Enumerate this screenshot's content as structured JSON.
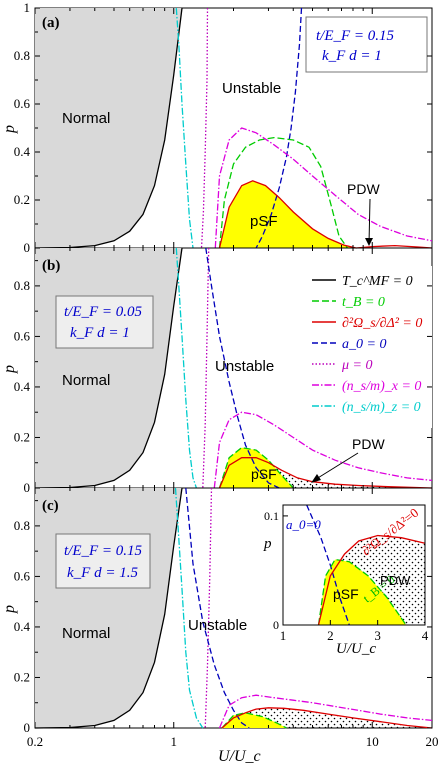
{
  "figure": {
    "x_axis_label": "U/U_c",
    "y_axis_label": "p",
    "x_ticks": [
      "0.2",
      "1",
      "10",
      "20"
    ],
    "y_ticks_top": [
      "0",
      "0.2",
      "0.4",
      "0.6",
      "0.8",
      "1"
    ],
    "y_ticks_mid": [
      "0",
      "0.2",
      "0.4",
      "0.6",
      "0.8"
    ],
    "y_ticks_bot": [
      "0",
      "0.2",
      "0.4",
      "0.6",
      "0.8"
    ]
  },
  "panels": [
    {
      "tag": "(a)",
      "param_line1": "t/E_F = 0.15",
      "param_line2": "k_F d = 1",
      "normal": "Normal",
      "unstable": "Unstable",
      "psf": "pSF",
      "pdw": "PDW"
    },
    {
      "tag": "(b)",
      "param_line1": "t/E_F = 0.05",
      "param_line2": "k_F d = 1",
      "normal": "Normal",
      "unstable": "Unstable",
      "psf": "pSF",
      "pdw": "PDW"
    },
    {
      "tag": "(c)",
      "param_line1": "t/E_F = 0.15",
      "param_line2": "k_F d = 1.5",
      "normal": "Normal",
      "unstable": "Unstable"
    }
  ],
  "legend": [
    {
      "label": "T_c^MF = 0",
      "color": "#000000",
      "dash": ""
    },
    {
      "label": "t_B = 0",
      "color": "#00cc00",
      "dash": "7,3"
    },
    {
      "label": "∂²Ω_s/∂Δ² = 0",
      "color": "#dd0000",
      "dash": ""
    },
    {
      "label": "a_0 = 0",
      "color": "#0000bb",
      "dash": "6,3"
    },
    {
      "label": "μ = 0",
      "color": "#bb00bb",
      "dash": "1.5,2"
    },
    {
      "label": "(n_s/m)_x = 0",
      "color": "#dd00dd",
      "dash": "7,2,1.5,2"
    },
    {
      "label": "(n_s/m)_z = 0",
      "color": "#00cccc",
      "dash": "7,2,1.5,2"
    }
  ],
  "inset": {
    "y_axis_label": "p",
    "x_axis_label": "U/U_c",
    "x_ticks": [
      "1",
      "2",
      "3",
      "4"
    ],
    "y_ticks": [
      "0",
      "0.1"
    ],
    "a0_label": "a_0=0",
    "curvature_label": "∂²Ω_s/∂Δ²=0",
    "tb_label": "t_B = 0",
    "pdw": "PDW",
    "psf": "pSF"
  },
  "chart_data": [
    {
      "type": "line",
      "title": "",
      "panel": "(a)",
      "xlabel": "U/U_c",
      "ylabel": "p",
      "x_scale": "log",
      "xlim": [
        0.2,
        20
      ],
      "ylim": [
        0,
        1
      ],
      "series": [
        {
          "name": "T_c^MF = 0",
          "x": [
            0.2,
            0.3,
            0.4,
            0.5,
            0.6,
            0.7,
            0.8,
            0.9,
            1.0,
            1.1
          ],
          "y": [
            0.0,
            0.002,
            0.01,
            0.03,
            0.07,
            0.14,
            0.26,
            0.45,
            0.72,
            1.0
          ]
        },
        {
          "name": "(n_s/m)_z = 0",
          "x": [
            1.03,
            1.06,
            1.1,
            1.15,
            1.2,
            1.25
          ],
          "y": [
            1.0,
            0.85,
            0.6,
            0.35,
            0.12,
            0.0
          ]
        },
        {
          "name": "μ = 0",
          "x": [
            1.48,
            1.47,
            1.44,
            1.41,
            1.38
          ],
          "y": [
            1.0,
            0.7,
            0.4,
            0.15,
            0.0
          ]
        },
        {
          "name": "a_0 = 0",
          "x": [
            4.4,
            4.3,
            4.1,
            3.9,
            3.7,
            3.4,
            3.1,
            2.8,
            2.6
          ],
          "y": [
            1.0,
            0.85,
            0.65,
            0.5,
            0.38,
            0.25,
            0.14,
            0.05,
            0.0
          ]
        },
        {
          "name": "t_B = 0",
          "x": [
            1.7,
            1.8,
            2.0,
            2.3,
            2.7,
            3.2,
            4.0,
            4.8,
            5.5,
            6.2,
            6.8,
            7.5
          ],
          "y": [
            0.0,
            0.2,
            0.35,
            0.42,
            0.45,
            0.46,
            0.45,
            0.42,
            0.34,
            0.18,
            0.05,
            0.0
          ]
        },
        {
          "name": "(n_s/m)_x = 0",
          "x": [
            1.62,
            1.7,
            1.9,
            2.2,
            2.6,
            3.2,
            4.0,
            5.0,
            6.5,
            8.5,
            11,
            15,
            20
          ],
          "y": [
            0.0,
            0.3,
            0.45,
            0.5,
            0.48,
            0.43,
            0.37,
            0.3,
            0.22,
            0.14,
            0.09,
            0.05,
            0.03
          ]
        },
        {
          "name": "∂²Ω_s/∂Δ² = 0",
          "x": [
            1.7,
            1.9,
            2.2,
            2.5,
            2.9,
            3.4,
            4.0,
            5.0,
            6.0,
            7.2,
            8.3,
            10,
            13,
            17,
            20
          ],
          "y": [
            0.0,
            0.17,
            0.26,
            0.28,
            0.26,
            0.21,
            0.15,
            0.08,
            0.04,
            0.012,
            0.0,
            0.006,
            0.01,
            0.004,
            0.0
          ]
        }
      ]
    },
    {
      "type": "line",
      "title": "",
      "panel": "(b)",
      "xlabel": "U/U_c",
      "ylabel": "p",
      "x_scale": "log",
      "xlim": [
        0.2,
        20
      ],
      "ylim": [
        0,
        0.95
      ],
      "series": [
        {
          "name": "T_c^MF = 0",
          "x": [
            0.2,
            0.3,
            0.4,
            0.5,
            0.6,
            0.7,
            0.8,
            0.9,
            1.0,
            1.1
          ],
          "y": [
            0.0,
            0.002,
            0.01,
            0.03,
            0.07,
            0.14,
            0.26,
            0.45,
            0.72,
            0.95
          ]
        },
        {
          "name": "(n_s/m)_z = 0",
          "x": [
            1.03,
            1.06,
            1.1,
            1.15,
            1.2,
            1.25,
            1.3
          ],
          "y": [
            0.95,
            0.8,
            0.6,
            0.35,
            0.15,
            0.04,
            0.0
          ]
        },
        {
          "name": "μ = 0",
          "x": [
            1.5,
            1.47,
            1.44,
            1.4
          ],
          "y": [
            0.95,
            0.6,
            0.25,
            0.0
          ]
        },
        {
          "name": "a_0 = 0",
          "x": [
            1.45,
            1.55,
            1.7,
            1.9,
            2.1,
            2.3,
            2.6,
            3.0,
            3.4
          ],
          "y": [
            0.95,
            0.8,
            0.6,
            0.42,
            0.28,
            0.17,
            0.08,
            0.02,
            0.0
          ]
        },
        {
          "name": "t_B = 0",
          "x": [
            1.7,
            1.9,
            2.2,
            2.6,
            3.0,
            3.5,
            4.0
          ],
          "y": [
            0.0,
            0.12,
            0.16,
            0.15,
            0.11,
            0.05,
            0.0
          ]
        },
        {
          "name": "(n_s/m)_x = 0",
          "x": [
            1.6,
            1.7,
            1.9,
            2.2,
            2.6,
            3.2,
            4.0,
            5.0,
            6.5,
            8.5,
            11,
            15,
            20
          ],
          "y": [
            0.0,
            0.18,
            0.27,
            0.3,
            0.29,
            0.25,
            0.2,
            0.15,
            0.11,
            0.08,
            0.06,
            0.04,
            0.03
          ]
        },
        {
          "name": "∂²Ω_s/∂Δ² = 0",
          "x": [
            1.7,
            1.9,
            2.2,
            2.6,
            3.0,
            3.5,
            4.2,
            5.0,
            6.5,
            8.5,
            12,
            20
          ],
          "y": [
            0.0,
            0.09,
            0.12,
            0.12,
            0.1,
            0.07,
            0.04,
            0.025,
            0.015,
            0.01,
            0.005,
            0.0
          ]
        }
      ]
    },
    {
      "type": "line",
      "title": "",
      "panel": "(c)",
      "xlabel": "U/U_c",
      "ylabel": "p",
      "x_scale": "log",
      "xlim": [
        0.2,
        20
      ],
      "ylim": [
        0,
        0.95
      ],
      "series": [
        {
          "name": "T_c^MF = 0",
          "x": [
            0.2,
            0.3,
            0.4,
            0.5,
            0.6,
            0.7,
            0.8,
            0.9,
            1.0,
            1.1
          ],
          "y": [
            0.0,
            0.002,
            0.01,
            0.03,
            0.07,
            0.14,
            0.26,
            0.45,
            0.72,
            0.95
          ]
        },
        {
          "name": "(n_s/m)_z = 0",
          "x": [
            1.02,
            1.05,
            1.1,
            1.15,
            1.2,
            1.3,
            1.4
          ],
          "y": [
            0.95,
            0.8,
            0.55,
            0.3,
            0.15,
            0.04,
            0.0
          ]
        },
        {
          "name": "μ = 0",
          "x": [
            1.55,
            1.52,
            1.48,
            1.44
          ],
          "y": [
            0.95,
            0.6,
            0.25,
            0.0
          ]
        },
        {
          "name": "a_0 = 0",
          "x": [
            1.15,
            1.25,
            1.4,
            1.6,
            1.8,
            2.0,
            2.2,
            2.4
          ],
          "y": [
            0.95,
            0.65,
            0.42,
            0.25,
            0.14,
            0.07,
            0.02,
            0.0
          ]
        },
        {
          "name": "t_B = 0",
          "x": [
            1.75,
            2.0,
            2.3,
            2.8,
            3.3,
            3.7
          ],
          "y": [
            0.0,
            0.05,
            0.06,
            0.045,
            0.02,
            0.0
          ]
        },
        {
          "name": "(n_s/m)_x = 0",
          "x": [
            1.7,
            1.9,
            2.2,
            2.6,
            3.2,
            4.0,
            5.0,
            6.5,
            8.5,
            11,
            15,
            20
          ],
          "y": [
            0.0,
            0.09,
            0.12,
            0.13,
            0.12,
            0.11,
            0.1,
            0.085,
            0.07,
            0.055,
            0.04,
            0.03
          ]
        },
        {
          "name": "∂²Ω_s/∂Δ² = 0",
          "x": [
            1.75,
            2.0,
            2.3,
            2.6,
            3.0,
            3.6,
            4.5,
            6.0,
            8.0,
            11,
            15,
            20
          ],
          "y": [
            0.0,
            0.04,
            0.06,
            0.075,
            0.08,
            0.078,
            0.07,
            0.055,
            0.04,
            0.025,
            0.01,
            0.0
          ]
        }
      ]
    },
    {
      "type": "line",
      "title": "",
      "panel": "(c) inset",
      "xlabel": "U/U_c",
      "ylabel": "p",
      "xlim": [
        1,
        4
      ],
      "ylim": [
        0,
        0.11
      ],
      "series": [
        {
          "name": "a_0 = 0",
          "x": [
            1.5,
            1.8,
            2.0,
            2.2,
            2.4
          ],
          "y": [
            0.11,
            0.08,
            0.055,
            0.025,
            0.0
          ]
        },
        {
          "name": "t_B = 0",
          "x": [
            1.75,
            1.9,
            2.1,
            2.4,
            2.8,
            3.2,
            3.6
          ],
          "y": [
            0.0,
            0.045,
            0.06,
            0.058,
            0.045,
            0.025,
            0.0
          ]
        },
        {
          "name": "∂²Ω_s/∂Δ² = 0",
          "x": [
            1.75,
            2.0,
            2.3,
            2.6,
            3.0,
            3.5,
            4.0
          ],
          "y": [
            0.0,
            0.045,
            0.065,
            0.077,
            0.082,
            0.08,
            0.075
          ]
        }
      ]
    }
  ]
}
